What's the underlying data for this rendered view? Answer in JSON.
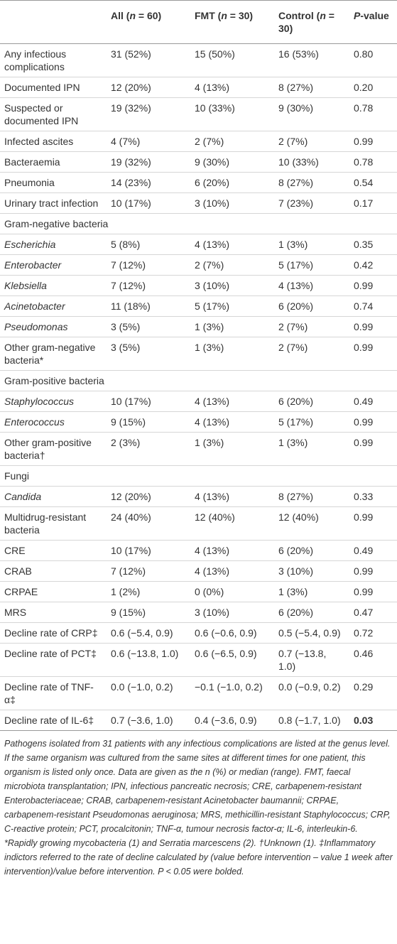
{
  "header": [
    [
      {
        "text": ""
      }
    ],
    [
      {
        "text": "All ("
      },
      {
        "text": "n",
        "italic": true
      },
      {
        "text": " = 60)"
      }
    ],
    [
      {
        "text": "FMT ("
      },
      {
        "text": "n",
        "italic": true
      },
      {
        "text": " = 30)"
      }
    ],
    [
      {
        "text": "Control ("
      },
      {
        "text": "n",
        "italic": true
      },
      {
        "text": " = 30)"
      }
    ],
    [
      {
        "text": "P",
        "italic": true
      },
      {
        "text": "-value"
      }
    ]
  ],
  "rows": [
    {
      "label": "Any infectious complications",
      "cells": [
        "31 (52%)",
        "15 (50%)",
        "16 (53%)",
        "0.80"
      ]
    },
    {
      "label": "Documented IPN",
      "cells": [
        "12 (20%)",
        "4 (13%)",
        "8 (27%)",
        "0.20"
      ]
    },
    {
      "label": "Suspected or documented IPN",
      "cells": [
        "19 (32%)",
        "10 (33%)",
        "9 (30%)",
        "0.78"
      ]
    },
    {
      "label": "Infected ascites",
      "cells": [
        "4 (7%)",
        "2 (7%)",
        "2 (7%)",
        "0.99"
      ]
    },
    {
      "label": "Bacteraemia",
      "cells": [
        "19 (32%)",
        "9 (30%)",
        "10 (33%)",
        "0.78"
      ]
    },
    {
      "label": "Pneumonia",
      "cells": [
        "14 (23%)",
        "6 (20%)",
        "8 (27%)",
        "0.54"
      ]
    },
    {
      "label": "Urinary tract infection",
      "cells": [
        "10 (17%)",
        "3 (10%)",
        "7 (23%)",
        "0.17"
      ]
    },
    {
      "label": "Gram-negative bacteria"
    },
    {
      "label": "Escherichia",
      "italic": true,
      "cells": [
        "5 (8%)",
        "4 (13%)",
        "1 (3%)",
        "0.35"
      ]
    },
    {
      "label": "Enterobacter",
      "italic": true,
      "cells": [
        "7 (12%)",
        "2 (7%)",
        "5 (17%)",
        "0.42"
      ]
    },
    {
      "label": "Klebsiella",
      "italic": true,
      "cells": [
        "7 (12%)",
        "3 (10%)",
        "4 (13%)",
        "0.99"
      ]
    },
    {
      "label": "Acinetobacter",
      "italic": true,
      "cells": [
        "11 (18%)",
        "5 (17%)",
        "6 (20%)",
        "0.74"
      ]
    },
    {
      "label": "Pseudomonas",
      "italic": true,
      "cells": [
        "3 (5%)",
        "1 (3%)",
        "2 (7%)",
        "0.99"
      ]
    },
    {
      "label": "Other gram-negative bacteria*",
      "cells": [
        "3 (5%)",
        "1 (3%)",
        "2 (7%)",
        "0.99"
      ]
    },
    {
      "label": "Gram-positive bacteria"
    },
    {
      "label": "Staphylococcus",
      "italic": true,
      "cells": [
        "10 (17%)",
        "4 (13%)",
        "6 (20%)",
        "0.49"
      ]
    },
    {
      "label": "Enterococcus",
      "italic": true,
      "cells": [
        "9 (15%)",
        "4 (13%)",
        "5 (17%)",
        "0.99"
      ]
    },
    {
      "label": "Other gram-positive bacteria†",
      "cells": [
        "2 (3%)",
        "1 (3%)",
        "1 (3%)",
        "0.99"
      ]
    },
    {
      "label": "Fungi"
    },
    {
      "label": "Candida",
      "italic": true,
      "cells": [
        "12 (20%)",
        "4 (13%)",
        "8 (27%)",
        "0.33"
      ]
    },
    {
      "label": "Multidrug-resistant bacteria",
      "cells": [
        "24 (40%)",
        "12 (40%)",
        "12 (40%)",
        "0.99"
      ]
    },
    {
      "label": "CRE",
      "cells": [
        "10 (17%)",
        "4 (13%)",
        "6 (20%)",
        "0.49"
      ]
    },
    {
      "label": "CRAB",
      "cells": [
        "7 (12%)",
        "4 (13%)",
        "3 (10%)",
        "0.99"
      ]
    },
    {
      "label": "CRPAE",
      "cells": [
        "1 (2%)",
        "0 (0%)",
        "1 (3%)",
        "0.99"
      ]
    },
    {
      "label": "MRS",
      "cells": [
        "9 (15%)",
        "3 (10%)",
        "6 (20%)",
        "0.47"
      ]
    },
    {
      "label": "Decline rate of CRP‡",
      "cells": [
        "0.6 (−5.4, 0.9)",
        "0.6 (−0.6, 0.9)",
        "0.5 (−5.4, 0.9)",
        "0.72"
      ]
    },
    {
      "label": "Decline rate of PCT‡",
      "cells": [
        "0.6 (−13.8, 1.0)",
        "0.6 (−6.5, 0.9)",
        "0.7 (−13.8, 1.0)",
        "0.46"
      ]
    },
    {
      "label": "Decline rate of TNF-α‡",
      "cells": [
        "0.0 (−1.0, 0.2)",
        "−0.1 (−1.0, 0.2)",
        "0.0 (−0.9, 0.2)",
        "0.29"
      ]
    },
    {
      "label": "Decline rate of IL-6‡",
      "bold_p": true,
      "cells": [
        "0.7 (−3.6, 1.0)",
        "0.4 (−3.6, 0.9)",
        "0.8 (−1.7, 1.0)",
        "0.03"
      ]
    }
  ],
  "footnote": "Pathogens isolated from 31 patients with any infectious complications are listed at the genus level. If the same organism was cultured from the same sites at different times for one patient, this organism is listed only once. Data are given as the n (%) or median (range). FMT, faecal microbiota transplantation; IPN, infectious pancreatic necrosis; CRE, carbapenem-resistant Enterobacteriaceae; CRAB, carbapenem-resistant Acinetobacter baumannii; CRPAE, carbapenem-resistant Pseudomonas aeruginosa; MRS, methicillin-resistant Staphylococcus; CRP, C-reactive protein; PCT, procalcitonin; TNF-α, tumour necrosis factor-α; IL-6, interleukin-6. *Rapidly growing mycobacteria (1) and Serratia marcescens (2). †Unknown (1). ‡Inflammatory indictors referred to the rate of decline calculated by (value before intervention – value 1 week after intervention)/value before intervention. P < 0.05 were bolded."
}
